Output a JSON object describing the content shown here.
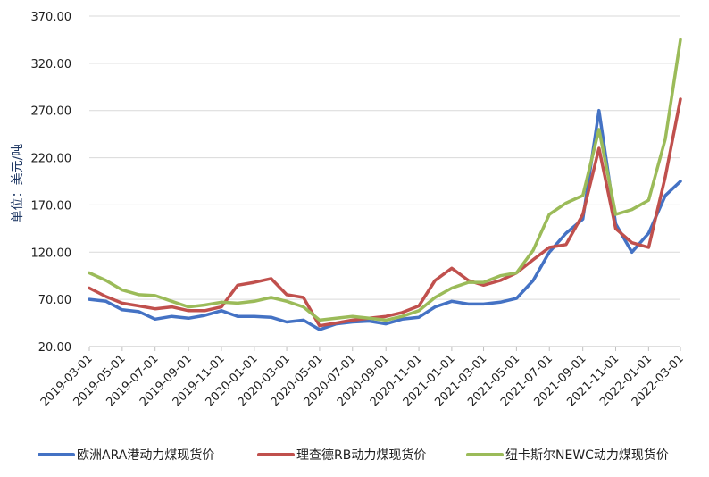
{
  "chart_data": {
    "type": "line",
    "ylabel": "单位：美元/吨",
    "ylim": [
      20,
      370
    ],
    "yticks": [
      "20.00",
      "70.00",
      "120.00",
      "170.00",
      "220.00",
      "270.00",
      "320.00",
      "370.00"
    ],
    "xticks": [
      "2019-03-01",
      "2019-05-01",
      "2019-07-01",
      "2019-09-01",
      "2019-11-01",
      "2020-01-01",
      "2020-03-01",
      "2020-05-01",
      "2020-07-01",
      "2020-09-01",
      "2020-11-01",
      "2021-01-01",
      "2021-03-01",
      "2021-05-01",
      "2021-07-01",
      "2021-09-01",
      "2021-11-01",
      "2022-01-01",
      "2022-03-01"
    ],
    "grid": "horizontal",
    "legend_position": "bottom",
    "x": [
      "2019-03-01",
      "2019-04-01",
      "2019-05-01",
      "2019-06-01",
      "2019-07-01",
      "2019-08-01",
      "2019-09-01",
      "2019-10-01",
      "2019-11-01",
      "2019-12-01",
      "2020-01-01",
      "2020-02-01",
      "2020-03-01",
      "2020-04-01",
      "2020-05-01",
      "2020-06-01",
      "2020-07-01",
      "2020-08-01",
      "2020-09-01",
      "2020-10-01",
      "2020-11-01",
      "2020-12-01",
      "2021-01-01",
      "2021-02-01",
      "2021-03-01",
      "2021-04-01",
      "2021-05-01",
      "2021-06-01",
      "2021-07-01",
      "2021-08-01",
      "2021-09-01",
      "2021-10-01",
      "2021-11-01",
      "2021-12-01",
      "2022-01-01",
      "2022-02-01",
      "2022-03-01"
    ],
    "series": [
      {
        "name": "欧洲ARA港动力煤现货价",
        "color": "#4472c4",
        "values": [
          70,
          68,
          59,
          57,
          49,
          52,
          50,
          53,
          58,
          52,
          52,
          51,
          46,
          48,
          38,
          44,
          46,
          47,
          44,
          49,
          51,
          62,
          68,
          65,
          65,
          67,
          71,
          90,
          120,
          140,
          155,
          270,
          150,
          120,
          140,
          180,
          195
        ]
      },
      {
        "name": "理查德RB动力煤现货价",
        "color": "#c0504d",
        "values": [
          82,
          73,
          66,
          63,
          60,
          62,
          58,
          58,
          62,
          85,
          88,
          92,
          75,
          72,
          42,
          45,
          48,
          50,
          52,
          56,
          63,
          90,
          103,
          90,
          85,
          90,
          98,
          112,
          125,
          128,
          160,
          230,
          145,
          130,
          125,
          200,
          282
        ]
      },
      {
        "name": "纽卡斯尔NEWC动力煤现货价",
        "color": "#9bbb59",
        "values": [
          98,
          90,
          80,
          75,
          74,
          68,
          62,
          64,
          67,
          66,
          68,
          72,
          68,
          62,
          48,
          50,
          52,
          50,
          48,
          52,
          58,
          72,
          82,
          88,
          88,
          95,
          98,
          122,
          160,
          172,
          180,
          250,
          160,
          165,
          175,
          240,
          345
        ]
      }
    ]
  }
}
